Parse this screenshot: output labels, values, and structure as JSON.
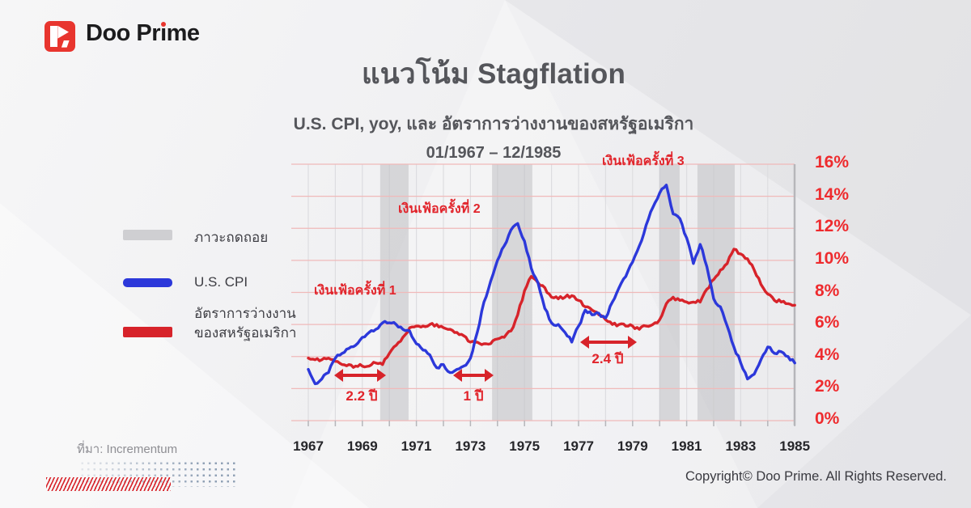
{
  "brand": {
    "name": "Doo Prime",
    "word_pre": "Doo Pr",
    "word_i": "i",
    "word_post": "me"
  },
  "header": {
    "title": "แนวโน้ม Stagflation",
    "subtitle": "U.S. CPI, yoy, และ อัตราการว่างงานของสหรัฐอเมริกา",
    "period": "01/1967 – 12/1985"
  },
  "legend": {
    "items": [
      {
        "label": "ภาวะถดถอย",
        "color": "#cfcfd2"
      },
      {
        "label": "U.S. CPI",
        "color": "#2c38da"
      },
      {
        "label_line1": "อัตราการว่างงาน",
        "label_line2": "ของสหรัฐอเมริกา",
        "color": "#d7232a"
      }
    ]
  },
  "chart_data": {
    "type": "line",
    "title": "แนวโน้ม Stagflation",
    "subtitle": "U.S. CPI, yoy, และ อัตราการว่างงานของสหรัฐอเมริกา 01/1967 – 12/1985",
    "x_start": 1967.0,
    "x_step": 0.25,
    "xlim": [
      1967,
      1985
    ],
    "ylim": [
      0,
      16
    ],
    "grid": true,
    "legend_position": "left",
    "y_ticks": [
      "0%",
      "2%",
      "4%",
      "6%",
      "8%",
      "10%",
      "12%",
      "14%",
      "16%"
    ],
    "x_tick_labels": [
      "1967",
      "1969",
      "1971",
      "1973",
      "1975",
      "1977",
      "1979",
      "1981",
      "1983",
      "1985"
    ],
    "recession_bands_years": [
      [
        1969.66,
        1970.71
      ],
      [
        1973.8,
        1975.29
      ],
      [
        1979.99,
        1980.74
      ],
      [
        1981.4,
        1982.78
      ]
    ],
    "series": [
      {
        "name": "U.S. CPI",
        "color": "#2c38da",
        "values": [
          3.2,
          2.3,
          2.6,
          3.0,
          3.9,
          4.2,
          4.5,
          4.7,
          5.2,
          5.5,
          5.7,
          6.1,
          6.1,
          6.0,
          5.7,
          5.6,
          4.8,
          4.4,
          4.1,
          3.3,
          3.5,
          3.0,
          3.2,
          3.4,
          3.9,
          5.5,
          7.4,
          8.7,
          10.0,
          10.9,
          11.9,
          12.3,
          11.2,
          9.5,
          8.6,
          7.0,
          6.1,
          6.0,
          5.5,
          4.9,
          5.9,
          6.9,
          6.6,
          6.7,
          6.4,
          7.4,
          8.3,
          9.0,
          9.9,
          10.9,
          12.2,
          13.3,
          14.2,
          14.7,
          12.9,
          12.6,
          11.4,
          9.8,
          11.0,
          9.6,
          7.6,
          7.1,
          5.9,
          4.6,
          3.6,
          2.6,
          2.9,
          3.8,
          4.6,
          4.2,
          4.3,
          4.0,
          3.6
        ]
      },
      {
        "name": "อัตราการว่างงานของสหรัฐอเมริกา",
        "color": "#d7232a",
        "values": [
          3.9,
          3.8,
          3.8,
          3.9,
          3.7,
          3.5,
          3.5,
          3.4,
          3.4,
          3.4,
          3.6,
          3.5,
          4.2,
          4.7,
          5.2,
          5.8,
          5.9,
          5.9,
          6.0,
          6.0,
          5.8,
          5.7,
          5.5,
          5.3,
          4.9,
          4.9,
          4.8,
          4.8,
          5.1,
          5.2,
          5.6,
          6.6,
          8.1,
          9.0,
          8.6,
          8.3,
          7.7,
          7.6,
          7.7,
          7.8,
          7.5,
          7.1,
          6.9,
          6.6,
          6.3,
          6.0,
          6.0,
          5.9,
          5.9,
          5.7,
          5.9,
          6.0,
          6.3,
          7.3,
          7.7,
          7.5,
          7.4,
          7.4,
          7.4,
          8.2,
          8.8,
          9.4,
          9.8,
          10.7,
          10.4,
          10.1,
          9.4,
          8.5,
          7.9,
          7.5,
          7.4,
          7.3,
          7.2
        ]
      }
    ],
    "annotations": {
      "inflation_labels": [
        "เงินเฟ้อครั้งที่ 1",
        "เงินเฟ้อครั้งที่ 2",
        "เงินเฟ้อครั้งที่ 3"
      ],
      "duration_labels": [
        "2.2 ปี",
        "1 ปี",
        "2.4 ปี"
      ]
    }
  },
  "footer": {
    "source": "ที่มา: Incrementum",
    "copyright": "Copyright© Doo Prime. All Rights Reserved."
  },
  "colors": {
    "accent_red": "#d7232a",
    "cpi_blue": "#2c38da",
    "recession_gray": "#cfcfd2",
    "grid_pink": "#f0b9b9",
    "axis_label_red": "#ee2b2e",
    "title_gray": "#55565b"
  }
}
